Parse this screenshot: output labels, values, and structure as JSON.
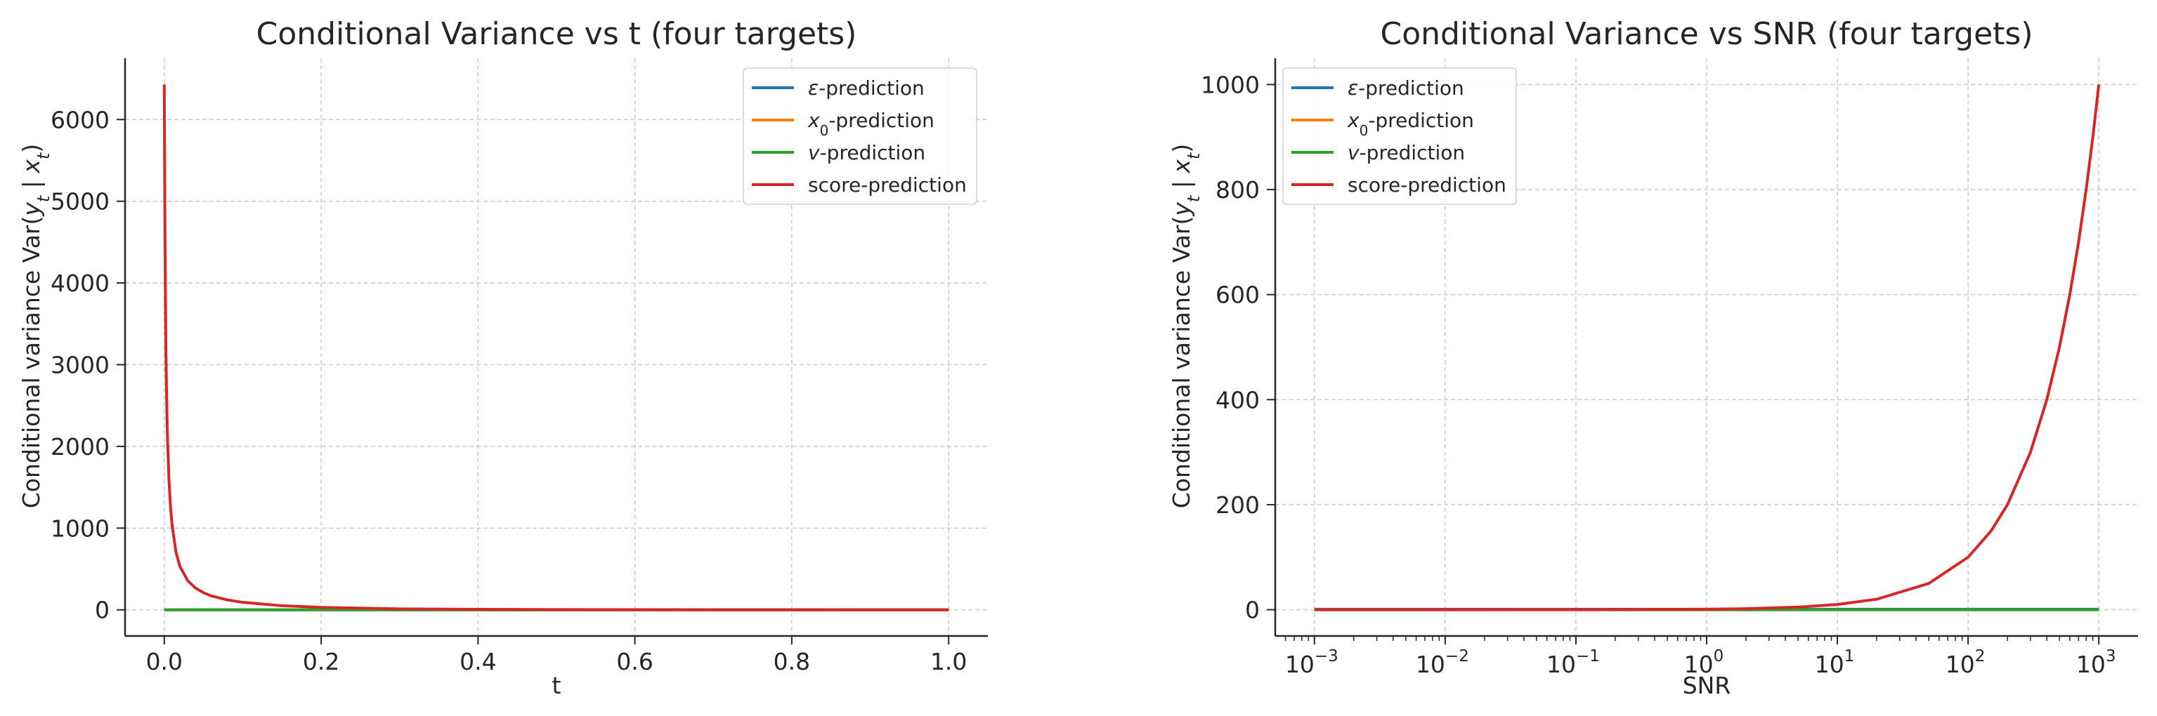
{
  "chart_data": [
    {
      "type": "line",
      "title": "Conditional Variance vs t (four targets)",
      "xlabel": "t",
      "ylabel": "Conditional variance Var(y_t | x_t)",
      "xlim": [
        -0.05,
        1.05
      ],
      "ylim": [
        -320,
        6750
      ],
      "x_scale": "linear",
      "xticks": [
        0,
        0.2,
        0.4,
        0.6,
        0.8,
        1.0
      ],
      "xtick_labels": [
        "0.0",
        "0.2",
        "0.4",
        "0.6",
        "0.8",
        "1.0"
      ],
      "yticks": [
        0,
        1000,
        2000,
        3000,
        4000,
        5000,
        6000
      ],
      "ytick_labels": [
        "0",
        "1000",
        "2000",
        "3000",
        "4000",
        "5000",
        "6000"
      ],
      "grid": true,
      "legend_position": "top-right",
      "series": [
        {
          "name": "ε-prediction",
          "color": "#1f77b4",
          "x": [
            0,
            0.1,
            0.2,
            0.3,
            0.4,
            0.5,
            0.6,
            0.7,
            0.8,
            0.9,
            1.0
          ],
          "y": [
            0,
            0,
            0,
            0,
            0,
            0,
            0,
            0,
            0,
            0,
            0
          ]
        },
        {
          "name": "x₀-prediction",
          "color": "#ff7f0e",
          "x": [
            0,
            0.1,
            0.2,
            0.3,
            0.4,
            0.5,
            0.6,
            0.7,
            0.8,
            0.9,
            1.0
          ],
          "y": [
            0,
            0,
            0,
            0,
            0,
            0,
            0,
            0,
            0,
            0,
            0
          ]
        },
        {
          "name": "v-prediction",
          "color": "#2ca02c",
          "x": [
            0,
            0.1,
            0.2,
            0.3,
            0.4,
            0.5,
            0.6,
            0.7,
            0.8,
            0.9,
            1.0
          ],
          "y": [
            0,
            0,
            0,
            0,
            0,
            0,
            0,
            0,
            0,
            0,
            0
          ]
        },
        {
          "name": "score-prediction",
          "color": "#d62728",
          "x": [
            0.0,
            0.001,
            0.002,
            0.003,
            0.004,
            0.006,
            0.008,
            0.01,
            0.015,
            0.02,
            0.03,
            0.04,
            0.05,
            0.06,
            0.08,
            0.1,
            0.15,
            0.2,
            0.3,
            0.4,
            0.5,
            0.6,
            0.7,
            0.8,
            0.9,
            1.0
          ],
          "y": [
            6430,
            4330,
            3230,
            2570,
            2130,
            1580,
            1250,
            1030,
            700,
            530,
            355,
            265,
            210,
            170,
            122,
            92,
            50,
            30,
            12,
            6,
            3.5,
            2,
            1.2,
            0.6,
            0.2,
            0
          ]
        }
      ]
    },
    {
      "type": "line",
      "title": "Conditional Variance vs SNR (four targets)",
      "xlabel": "SNR",
      "ylabel": "Conditional variance Var(y_t | x_t)",
      "xlim_log10": [
        -3.3,
        3.3
      ],
      "ylim": [
        -50,
        1050
      ],
      "x_scale": "log",
      "xticks_log10": [
        -3,
        -2,
        -1,
        0,
        1,
        2,
        3
      ],
      "xtick_labels": [
        {
          "base": "10",
          "exp": "−3"
        },
        {
          "base": "10",
          "exp": "−2"
        },
        {
          "base": "10",
          "exp": "−1"
        },
        {
          "base": "10",
          "exp": "0"
        },
        {
          "base": "10",
          "exp": "1"
        },
        {
          "base": "10",
          "exp": "2"
        },
        {
          "base": "10",
          "exp": "3"
        }
      ],
      "yticks": [
        0,
        200,
        400,
        600,
        800,
        1000
      ],
      "ytick_labels": [
        "0",
        "200",
        "400",
        "600",
        "800",
        "1000"
      ],
      "grid": true,
      "legend_position": "top-left",
      "series": [
        {
          "name": "ε-prediction",
          "color": "#1f77b4",
          "x": [
            0.001,
            0.01,
            0.1,
            1,
            10,
            100,
            1000
          ],
          "y": [
            1,
            1,
            1,
            1,
            1,
            1,
            1
          ]
        },
        {
          "name": "x₀-prediction",
          "color": "#ff7f0e",
          "x": [
            0.001,
            0.01,
            0.1,
            1,
            10,
            100,
            1000
          ],
          "y": [
            0,
            0,
            0,
            0,
            0,
            0,
            0
          ]
        },
        {
          "name": "v-prediction",
          "color": "#2ca02c",
          "x": [
            0.001,
            0.01,
            0.1,
            1,
            10,
            100,
            1000
          ],
          "y": [
            0,
            0,
            0,
            0,
            0,
            0,
            0
          ]
        },
        {
          "name": "score-prediction",
          "color": "#d62728",
          "x": [
            0.001,
            0.01,
            0.1,
            1,
            2,
            5,
            10,
            20,
            50,
            100,
            150,
            200,
            300,
            400,
            500,
            600,
            700,
            800,
            900,
            1000
          ],
          "y": [
            0.001,
            0.01,
            0.1,
            1,
            2,
            5,
            10,
            20,
            50,
            100,
            150,
            200,
            300,
            400,
            500,
            600,
            700,
            800,
            900,
            1000
          ]
        }
      ]
    }
  ]
}
